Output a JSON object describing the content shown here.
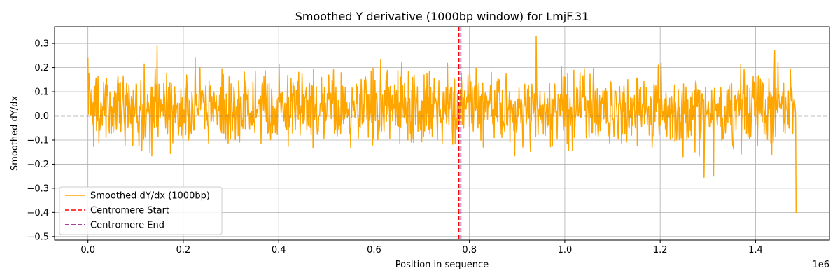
{
  "chart_data": {
    "type": "line",
    "title": "Smoothed Y derivative (1000bp window) for LmjF.31",
    "xlabel": "Position in sequence",
    "ylabel": "Smoothed dY/dx",
    "x_offset_label": "1e6",
    "xlim": [
      -70000,
      1555000
    ],
    "ylim": [
      -0.515,
      0.37
    ],
    "x_ticks": [
      0,
      200000,
      400000,
      600000,
      800000,
      1000000,
      1200000,
      1400000
    ],
    "x_tick_labels": [
      "0.0",
      "0.2",
      "0.4",
      "0.6",
      "0.8",
      "1.0",
      "1.2",
      "1.4"
    ],
    "y_ticks": [
      -0.5,
      -0.4,
      -0.3,
      -0.2,
      -0.1,
      0.0,
      0.1,
      0.2,
      0.3
    ],
    "y_tick_labels": [
      "−0.5",
      "−0.4",
      "−0.3",
      "−0.2",
      "−0.1",
      "0.0",
      "0.1",
      "0.2",
      "0.3"
    ],
    "grid": true,
    "legend_position": "lower-left",
    "series": [
      {
        "name": "Smoothed dY/dx (1000bp)",
        "color": "#ffa500",
        "style": "solid",
        "x_start": 0,
        "x_end": 1486000,
        "step": 1000,
        "y_range": [
          -0.4,
          0.33
        ],
        "notable_points": [
          {
            "x": 0,
            "y": 0.24
          },
          {
            "x": 145000,
            "y": 0.29
          },
          {
            "x": 940000,
            "y": 0.33
          },
          {
            "x": 1292000,
            "y": -0.255
          },
          {
            "x": 1312000,
            "y": -0.25
          },
          {
            "x": 1440000,
            "y": 0.27
          },
          {
            "x": 1485000,
            "y": -0.4
          }
        ]
      }
    ],
    "reference_lines": [
      {
        "orientation": "horizontal",
        "y": 0.0,
        "color": "#808080",
        "style": "dashed"
      }
    ],
    "vertical_lines": [
      {
        "name": "Centromere Start",
        "x": 778000,
        "color": "#ff0000",
        "style": "dashed"
      },
      {
        "name": "Centromere End",
        "x": 782000,
        "color": "#800080",
        "style": "dashed"
      }
    ]
  }
}
